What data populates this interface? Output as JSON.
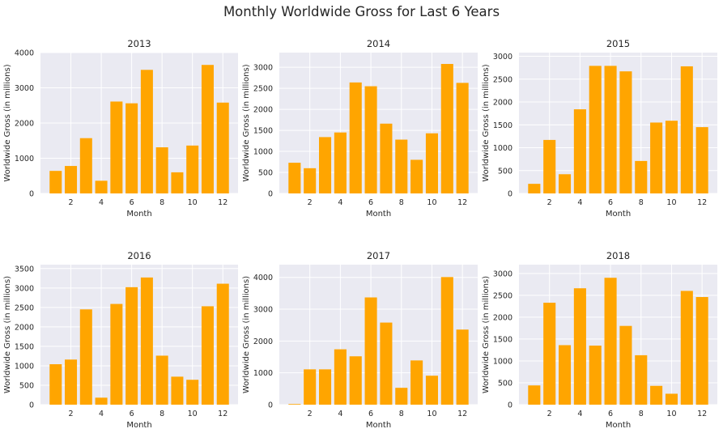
{
  "title": "Monthly Worldwide Gross for Last 6 Years",
  "colors": {
    "bar": "#FFA500",
    "panel_bg": "#EAEAF2",
    "grid": "#FFFFFF"
  },
  "chart_data": [
    {
      "type": "bar",
      "title": "2013",
      "xlabel": "Month",
      "ylabel": "Worldwide Gross (in millions)",
      "x": [
        1,
        2,
        3,
        4,
        5,
        6,
        7,
        8,
        9,
        10,
        11,
        12
      ],
      "values": [
        640,
        780,
        1570,
        360,
        2610,
        2560,
        3510,
        1310,
        600,
        1360,
        3650,
        2580
      ],
      "xticks": [
        2,
        4,
        6,
        8,
        10,
        12
      ],
      "yticks": [
        0,
        1000,
        2000,
        3000,
        4000
      ],
      "ylim": [
        0,
        4000
      ],
      "grid": true
    },
    {
      "type": "bar",
      "title": "2014",
      "xlabel": "Month",
      "ylabel": "Worldwide Gross (in millions)",
      "x": [
        1,
        2,
        3,
        4,
        5,
        6,
        7,
        8,
        9,
        10,
        11,
        12
      ],
      "values": [
        730,
        600,
        1340,
        1450,
        2640,
        2550,
        1660,
        1280,
        800,
        1430,
        3080,
        2630
      ],
      "xticks": [
        2,
        4,
        6,
        8,
        10,
        12
      ],
      "yticks": [
        0,
        500,
        1000,
        1500,
        2000,
        2500,
        3000
      ],
      "ylim": [
        0,
        3350
      ],
      "grid": true
    },
    {
      "type": "bar",
      "title": "2015",
      "xlabel": "Month",
      "ylabel": "Worldwide Gross (in millions)",
      "x": [
        1,
        2,
        3,
        4,
        5,
        6,
        7,
        8,
        9,
        10,
        11,
        12
      ],
      "values": [
        210,
        1170,
        420,
        1840,
        2790,
        2790,
        2670,
        710,
        1550,
        1590,
        2780,
        1450
      ],
      "xticks": [
        2,
        4,
        6,
        8,
        10,
        12
      ],
      "yticks": [
        0,
        500,
        1000,
        1500,
        2000,
        2500,
        3000
      ],
      "ylim": [
        0,
        3080
      ],
      "grid": true
    },
    {
      "type": "bar",
      "title": "2016",
      "xlabel": "Month",
      "ylabel": "Worldwide Gross (in millions)",
      "x": [
        1,
        2,
        3,
        4,
        5,
        6,
        7,
        8,
        9,
        10,
        11,
        12
      ],
      "values": [
        1040,
        1160,
        2450,
        180,
        2590,
        3020,
        3270,
        1260,
        720,
        640,
        2530,
        3110
      ],
      "xticks": [
        2,
        4,
        6,
        8,
        10,
        12
      ],
      "yticks": [
        0,
        500,
        1000,
        1500,
        2000,
        2500,
        3000,
        3500
      ],
      "ylim": [
        0,
        3600
      ],
      "grid": true
    },
    {
      "type": "bar",
      "title": "2017",
      "xlabel": "Month",
      "ylabel": "Worldwide Gross (in millions)",
      "x": [
        1,
        2,
        3,
        4,
        5,
        6,
        7,
        8,
        9,
        10,
        11,
        12
      ],
      "values": [
        20,
        1110,
        1110,
        1740,
        1520,
        3370,
        2580,
        530,
        1390,
        910,
        4010,
        2360
      ],
      "xticks": [
        2,
        4,
        6,
        8,
        10,
        12
      ],
      "yticks": [
        0,
        1000,
        2000,
        3000,
        4000
      ],
      "ylim": [
        0,
        4400
      ],
      "grid": true
    },
    {
      "type": "bar",
      "title": "2018",
      "xlabel": "Month",
      "ylabel": "Worldwide Gross (in millions)",
      "x": [
        1,
        2,
        3,
        4,
        5,
        6,
        7,
        8,
        9,
        10,
        11,
        12
      ],
      "values": [
        440,
        2330,
        1360,
        2660,
        1350,
        2900,
        1800,
        1130,
        430,
        250,
        2600,
        2460
      ],
      "xticks": [
        2,
        4,
        6,
        8,
        10,
        12
      ],
      "yticks": [
        0,
        500,
        1000,
        1500,
        2000,
        2500,
        3000
      ],
      "ylim": [
        0,
        3200
      ],
      "grid": true
    }
  ]
}
